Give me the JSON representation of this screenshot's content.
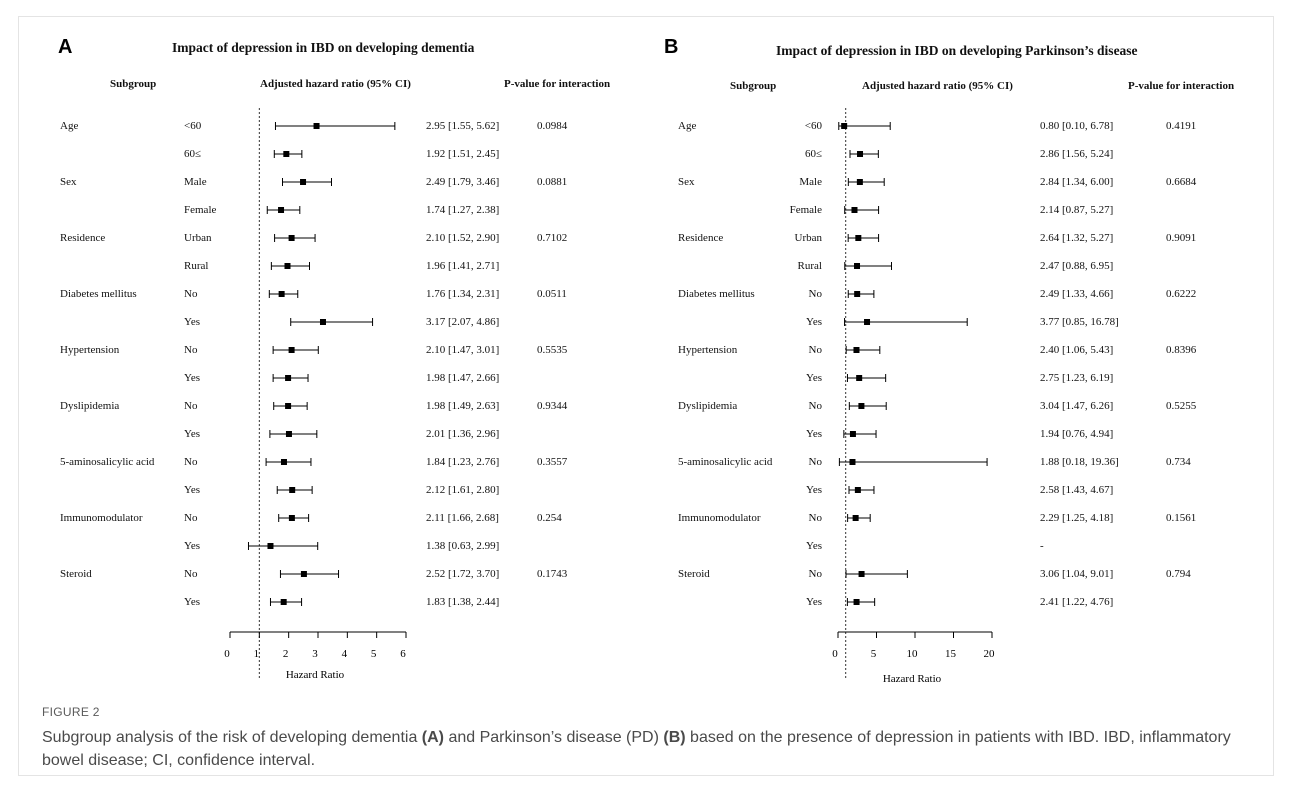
{
  "chart_data": [
    {
      "type": "forest",
      "panel": "A",
      "title": "Impact of depression in IBD on developing dementia",
      "headers": {
        "subgroup": "Subgroup",
        "hr": "Adjusted hazard ratio (95% CI)",
        "p": "P-value for interaction"
      },
      "xlabel": "Hazard Ratio",
      "xlim": [
        0,
        6
      ],
      "xticks": [
        "0",
        "1",
        "2",
        "3",
        "4",
        "5",
        "6"
      ],
      "ref_line": 1,
      "rows": [
        {
          "group": "Age",
          "level": "<60",
          "hr": 2.95,
          "lo": 1.55,
          "hi": 5.62,
          "text": "2.95 [1.55, 5.62]",
          "p": "0.0984"
        },
        {
          "group": "",
          "level": "60≤",
          "hr": 1.92,
          "lo": 1.51,
          "hi": 2.45,
          "text": "1.92 [1.51, 2.45]",
          "p": ""
        },
        {
          "group": "Sex",
          "level": "Male",
          "hr": 2.49,
          "lo": 1.79,
          "hi": 3.46,
          "text": "2.49 [1.79, 3.46]",
          "p": "0.0881"
        },
        {
          "group": "",
          "level": "Female",
          "hr": 1.74,
          "lo": 1.27,
          "hi": 2.38,
          "text": "1.74 [1.27, 2.38]",
          "p": ""
        },
        {
          "group": "Residence",
          "level": "Urban",
          "hr": 2.1,
          "lo": 1.52,
          "hi": 2.9,
          "text": "2.10 [1.52, 2.90]",
          "p": "0.7102"
        },
        {
          "group": "",
          "level": "Rural",
          "hr": 1.96,
          "lo": 1.41,
          "hi": 2.71,
          "text": "1.96 [1.41, 2.71]",
          "p": ""
        },
        {
          "group": "Diabetes mellitus",
          "level": "No",
          "hr": 1.76,
          "lo": 1.34,
          "hi": 2.31,
          "text": "1.76 [1.34, 2.31]",
          "p": "0.0511"
        },
        {
          "group": "",
          "level": "Yes",
          "hr": 3.17,
          "lo": 2.07,
          "hi": 4.86,
          "text": "3.17 [2.07, 4.86]",
          "p": ""
        },
        {
          "group": "Hypertension",
          "level": "No",
          "hr": 2.1,
          "lo": 1.47,
          "hi": 3.01,
          "text": "2.10 [1.47, 3.01]",
          "p": "0.5535"
        },
        {
          "group": "",
          "level": "Yes",
          "hr": 1.98,
          "lo": 1.47,
          "hi": 2.66,
          "text": "1.98 [1.47, 2.66]",
          "p": ""
        },
        {
          "group": "Dyslipidemia",
          "level": "No",
          "hr": 1.98,
          "lo": 1.49,
          "hi": 2.63,
          "text": "1.98 [1.49, 2.63]",
          "p": "0.9344"
        },
        {
          "group": "",
          "level": "Yes",
          "hr": 2.01,
          "lo": 1.36,
          "hi": 2.96,
          "text": "2.01 [1.36, 2.96]",
          "p": ""
        },
        {
          "group": "5-aminosalicylic acid",
          "level": "No",
          "hr": 1.84,
          "lo": 1.23,
          "hi": 2.76,
          "text": "1.84 [1.23, 2.76]",
          "p": "0.3557"
        },
        {
          "group": "",
          "level": "Yes",
          "hr": 2.12,
          "lo": 1.61,
          "hi": 2.8,
          "text": "2.12 [1.61, 2.80]",
          "p": ""
        },
        {
          "group": "Immunomodulator",
          "level": "No",
          "hr": 2.11,
          "lo": 1.66,
          "hi": 2.68,
          "text": "2.11 [1.66, 2.68]",
          "p": "0.254"
        },
        {
          "group": "",
          "level": "Yes",
          "hr": 1.38,
          "lo": 0.63,
          "hi": 2.99,
          "text": "1.38 [0.63, 2.99]",
          "p": ""
        },
        {
          "group": "Steroid",
          "level": "No",
          "hr": 2.52,
          "lo": 1.72,
          "hi": 3.7,
          "text": "2.52 [1.72, 3.70]",
          "p": "0.1743"
        },
        {
          "group": "",
          "level": "Yes",
          "hr": 1.83,
          "lo": 1.38,
          "hi": 2.44,
          "text": "1.83 [1.38, 2.44]",
          "p": ""
        }
      ]
    },
    {
      "type": "forest",
      "panel": "B",
      "title": "Impact of depression in IBD on developing Parkinson’s disease",
      "headers": {
        "subgroup": "Subgroup",
        "hr": "Adjusted hazard ratio (95% CI)",
        "p": "P-value for interaction"
      },
      "xlabel": "Hazard Ratio",
      "xlim": [
        0,
        20
      ],
      "xticks": [
        "0",
        "5",
        "10",
        "15",
        "20"
      ],
      "ref_line": 1,
      "rows": [
        {
          "group": "Age",
          "level": "<60",
          "hr": 0.8,
          "lo": 0.1,
          "hi": 6.78,
          "text": "0.80 [0.10,  6.78]",
          "p": "0.4191"
        },
        {
          "group": "",
          "level": "60≤",
          "hr": 2.86,
          "lo": 1.56,
          "hi": 5.24,
          "text": "2.86 [1.56,  5.24]",
          "p": ""
        },
        {
          "group": "Sex",
          "level": "Male",
          "hr": 2.84,
          "lo": 1.34,
          "hi": 6.0,
          "text": "2.84 [1.34,  6.00]",
          "p": "0.6684"
        },
        {
          "group": "",
          "level": "Female",
          "hr": 2.14,
          "lo": 0.87,
          "hi": 5.27,
          "text": "2.14 [0.87,  5.27]",
          "p": ""
        },
        {
          "group": "Residence",
          "level": "Urban",
          "hr": 2.64,
          "lo": 1.32,
          "hi": 5.27,
          "text": "2.64 [1.32,  5.27]",
          "p": "0.9091"
        },
        {
          "group": "",
          "level": "Rural",
          "hr": 2.47,
          "lo": 0.88,
          "hi": 6.95,
          "text": "2.47 [0.88,  6.95]",
          "p": ""
        },
        {
          "group": "Diabetes mellitus",
          "level": "No",
          "hr": 2.49,
          "lo": 1.33,
          "hi": 4.66,
          "text": "2.49 [1.33,  4.66]",
          "p": "0.6222"
        },
        {
          "group": "",
          "level": "Yes",
          "hr": 3.77,
          "lo": 0.85,
          "hi": 16.78,
          "text": "3.77 [0.85, 16.78]",
          "p": ""
        },
        {
          "group": "Hypertension",
          "level": "No",
          "hr": 2.4,
          "lo": 1.06,
          "hi": 5.43,
          "text": "2.40 [1.06,  5.43]",
          "p": "0.8396"
        },
        {
          "group": "",
          "level": "Yes",
          "hr": 2.75,
          "lo": 1.23,
          "hi": 6.19,
          "text": "2.75 [1.23,  6.19]",
          "p": ""
        },
        {
          "group": "Dyslipidemia",
          "level": "No",
          "hr": 3.04,
          "lo": 1.47,
          "hi": 6.26,
          "text": "3.04 [1.47,  6.26]",
          "p": "0.5255"
        },
        {
          "group": "",
          "level": "Yes",
          "hr": 1.94,
          "lo": 0.76,
          "hi": 4.94,
          "text": "1.94 [0.76,  4.94]",
          "p": ""
        },
        {
          "group": "5-aminosalicylic acid",
          "level": "No",
          "hr": 1.88,
          "lo": 0.18,
          "hi": 19.36,
          "text": "1.88 [0.18, 19.36]",
          "p": "0.734"
        },
        {
          "group": "",
          "level": "Yes",
          "hr": 2.58,
          "lo": 1.43,
          "hi": 4.67,
          "text": "2.58 [1.43,  4.67]",
          "p": ""
        },
        {
          "group": "Immunomodulator",
          "level": "No",
          "hr": 2.29,
          "lo": 1.25,
          "hi": 4.18,
          "text": "2.29 [1.25,  4.18]",
          "p": "0.1561"
        },
        {
          "group": "",
          "level": "Yes",
          "hr": null,
          "lo": null,
          "hi": null,
          "text": "-",
          "p": ""
        },
        {
          "group": "Steroid",
          "level": "No",
          "hr": 3.06,
          "lo": 1.04,
          "hi": 9.01,
          "text": "3.06 [1.04,  9.01]",
          "p": "0.794"
        },
        {
          "group": "",
          "level": "Yes",
          "hr": 2.41,
          "lo": 1.22,
          "hi": 4.76,
          "text": "2.41 [1.22,  4.76]",
          "p": ""
        }
      ]
    }
  ],
  "figure": {
    "label": "FIGURE 2",
    "caption_parts": [
      "Subgroup analysis of the risk of developing dementia ",
      "(A)",
      " and Parkinson’s disease (PD) ",
      "(B)",
      " based on the presence of depression in patients with IBD. IBD, inflammatory bowel disease; CI, confidence interval."
    ]
  }
}
